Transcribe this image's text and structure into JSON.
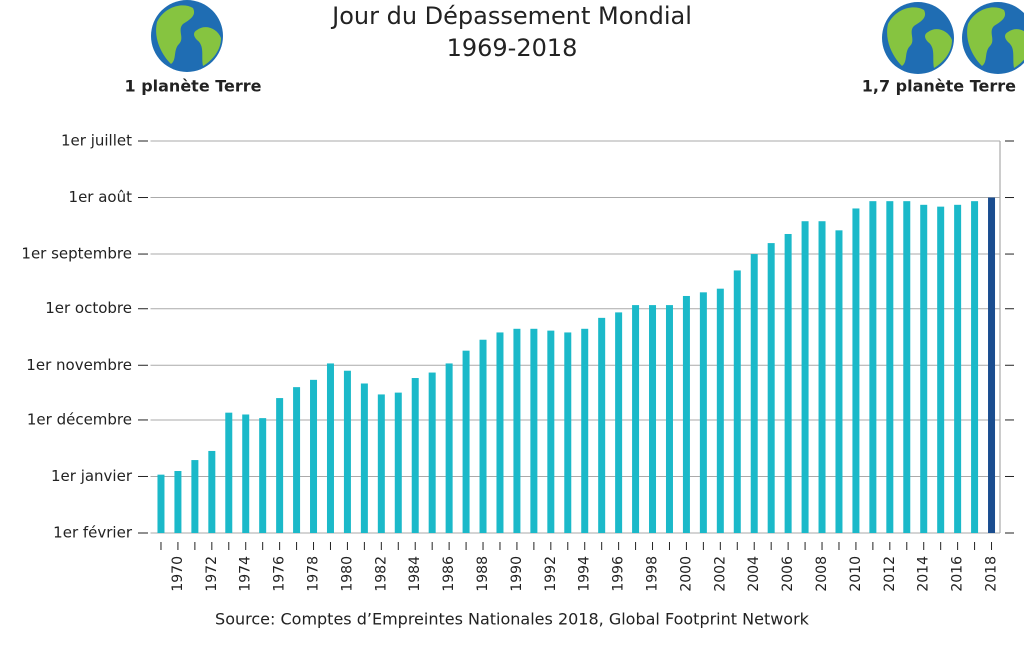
{
  "chart_data": {
    "type": "bar",
    "title": "Jour du Dépassement Mondial",
    "subtitle": "1969-2018",
    "annotations": [
      "1 planète Terre",
      "1,7 planète Terre"
    ],
    "source": "Source: Comptes d’Empreintes Nationales 2018, Global Footprint Network",
    "categories": [
      null,
      "1970",
      null,
      "1972",
      null,
      "1974",
      null,
      "1976",
      null,
      "1978",
      null,
      "1980",
      null,
      "1982",
      null,
      "1984",
      null,
      "1986",
      null,
      "1988",
      null,
      "1990",
      null,
      "1992",
      null,
      "1994",
      null,
      "1996",
      null,
      "1998",
      null,
      "2000",
      null,
      "2002",
      null,
      "2004",
      null,
      "2006",
      null,
      "2008",
      null,
      "2010",
      null,
      "2012",
      null,
      "2014",
      null,
      "2016",
      null,
      "2018"
    ],
    "values": [
      365,
      363,
      357,
      352,
      331,
      332,
      334,
      323,
      317,
      313,
      304,
      308,
      315,
      321,
      320,
      312,
      309,
      304,
      297,
      291,
      287,
      285,
      285,
      286,
      287,
      285,
      279,
      276,
      272,
      272,
      272,
      267,
      265,
      263,
      253,
      244,
      238,
      233,
      226,
      226,
      231,
      219,
      215,
      215,
      215,
      217,
      218,
      217,
      215,
      213
    ],
    "colors": [
      "#1bb9c9",
      "#1bb9c9",
      "#1bb9c9",
      "#1bb9c9",
      "#1bb9c9",
      "#1bb9c9",
      "#1bb9c9",
      "#1bb9c9",
      "#1bb9c9",
      "#1bb9c9",
      "#1bb9c9",
      "#1bb9c9",
      "#1bb9c9",
      "#1bb9c9",
      "#1bb9c9",
      "#1bb9c9",
      "#1bb9c9",
      "#1bb9c9",
      "#1bb9c9",
      "#1bb9c9",
      "#1bb9c9",
      "#1bb9c9",
      "#1bb9c9",
      "#1bb9c9",
      "#1bb9c9",
      "#1bb9c9",
      "#1bb9c9",
      "#1bb9c9",
      "#1bb9c9",
      "#1bb9c9",
      "#1bb9c9",
      "#1bb9c9",
      "#1bb9c9",
      "#1bb9c9",
      "#1bb9c9",
      "#1bb9c9",
      "#1bb9c9",
      "#1bb9c9",
      "#1bb9c9",
      "#1bb9c9",
      "#1bb9c9",
      "#1bb9c9",
      "#1bb9c9",
      "#1bb9c9",
      "#1bb9c9",
      "#1bb9c9",
      "#1bb9c9",
      "#1bb9c9",
      "#1bb9c9",
      "#1a4d8f"
    ],
    "ylim": [
      397,
      182
    ],
    "yticks": [
      {
        "value": 182,
        "label": "1er juillet"
      },
      {
        "value": 213,
        "label": "1er août"
      },
      {
        "value": 244,
        "label": "1er septembre"
      },
      {
        "value": 274,
        "label": "1er octobre"
      },
      {
        "value": 305,
        "label": "1er novembre"
      },
      {
        "value": 335,
        "label": "1er décembre"
      },
      {
        "value": 366,
        "label": "1er janvier",
        "color": "#9a9a9a"
      },
      {
        "value": 397,
        "label": "1er février",
        "color": "#9a9a9a"
      }
    ],
    "grid": true
  }
}
